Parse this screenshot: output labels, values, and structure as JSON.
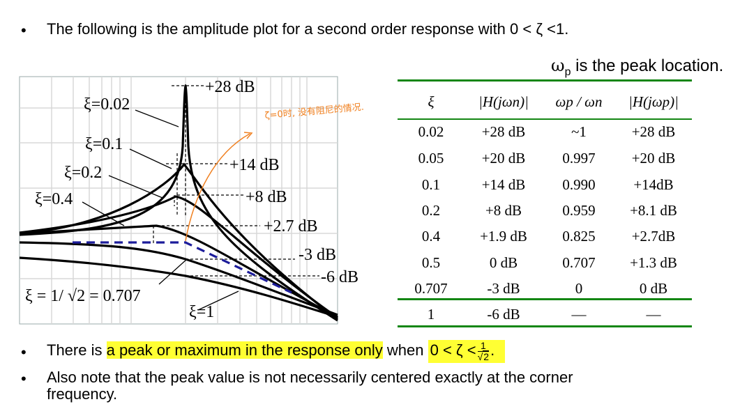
{
  "bullets": {
    "b1": "The following is the amplitude plot for a second order response with 0 < ζ <1.",
    "b2_pre": "There is ",
    "b2_hl": "a peak or maximum in the response only",
    "b2_mid": " when ",
    "b2_cond": "0 < ζ <",
    "b2_num": "1",
    "b2_den": "2",
    "b2_end": ".",
    "b3_line1": "Also note that the peak value is not necessarily centered exactly at the corner",
    "b3_line2": "frequency."
  },
  "bullet_symbol": "•",
  "peak_note": {
    "omega": "ω",
    "sub": "p",
    "text": " is the peak location."
  },
  "plot": {
    "curve_labels": [
      "ξ=0.02",
      "ξ=0.1",
      "ξ=0.2",
      "ξ=0.4",
      "ξ = 1/ √2 = 0.707",
      "ξ=1"
    ],
    "db_labels": [
      "+28 dB",
      "+14 dB",
      "+8 dB",
      "+2.7 dB",
      "-3 dB",
      "-6 dB"
    ],
    "handwritten_note": "ζ=0时, 没有阻尼的情况."
  },
  "table": {
    "headers": [
      "ξ",
      "|H(jωn)|",
      "ωp / ωn",
      "|H(jωp)|"
    ],
    "rows": [
      [
        "0.02",
        "+28 dB",
        "~1",
        "+28 dB"
      ],
      [
        "0.05",
        "+20 dB",
        "0.997",
        "+20 dB"
      ],
      [
        "0.1",
        "+14 dB",
        "0.990",
        "+14dB"
      ],
      [
        "0.2",
        "+8 dB",
        "0.959",
        "+8.1 dB"
      ],
      [
        "0.4",
        "+1.9 dB",
        "0.825",
        "+2.7dB"
      ],
      [
        "0.5",
        "0 dB",
        "0.707",
        "+1.3 dB"
      ],
      [
        "0.707",
        "-3 dB",
        "0",
        "0 dB"
      ],
      [
        "1",
        "-6 dB",
        "—",
        "—"
      ]
    ]
  },
  "colors": {
    "rule": "#138613",
    "highlight": "#ffff33",
    "annotation": "#f08020",
    "asymptote": "#1c1c9a"
  }
}
